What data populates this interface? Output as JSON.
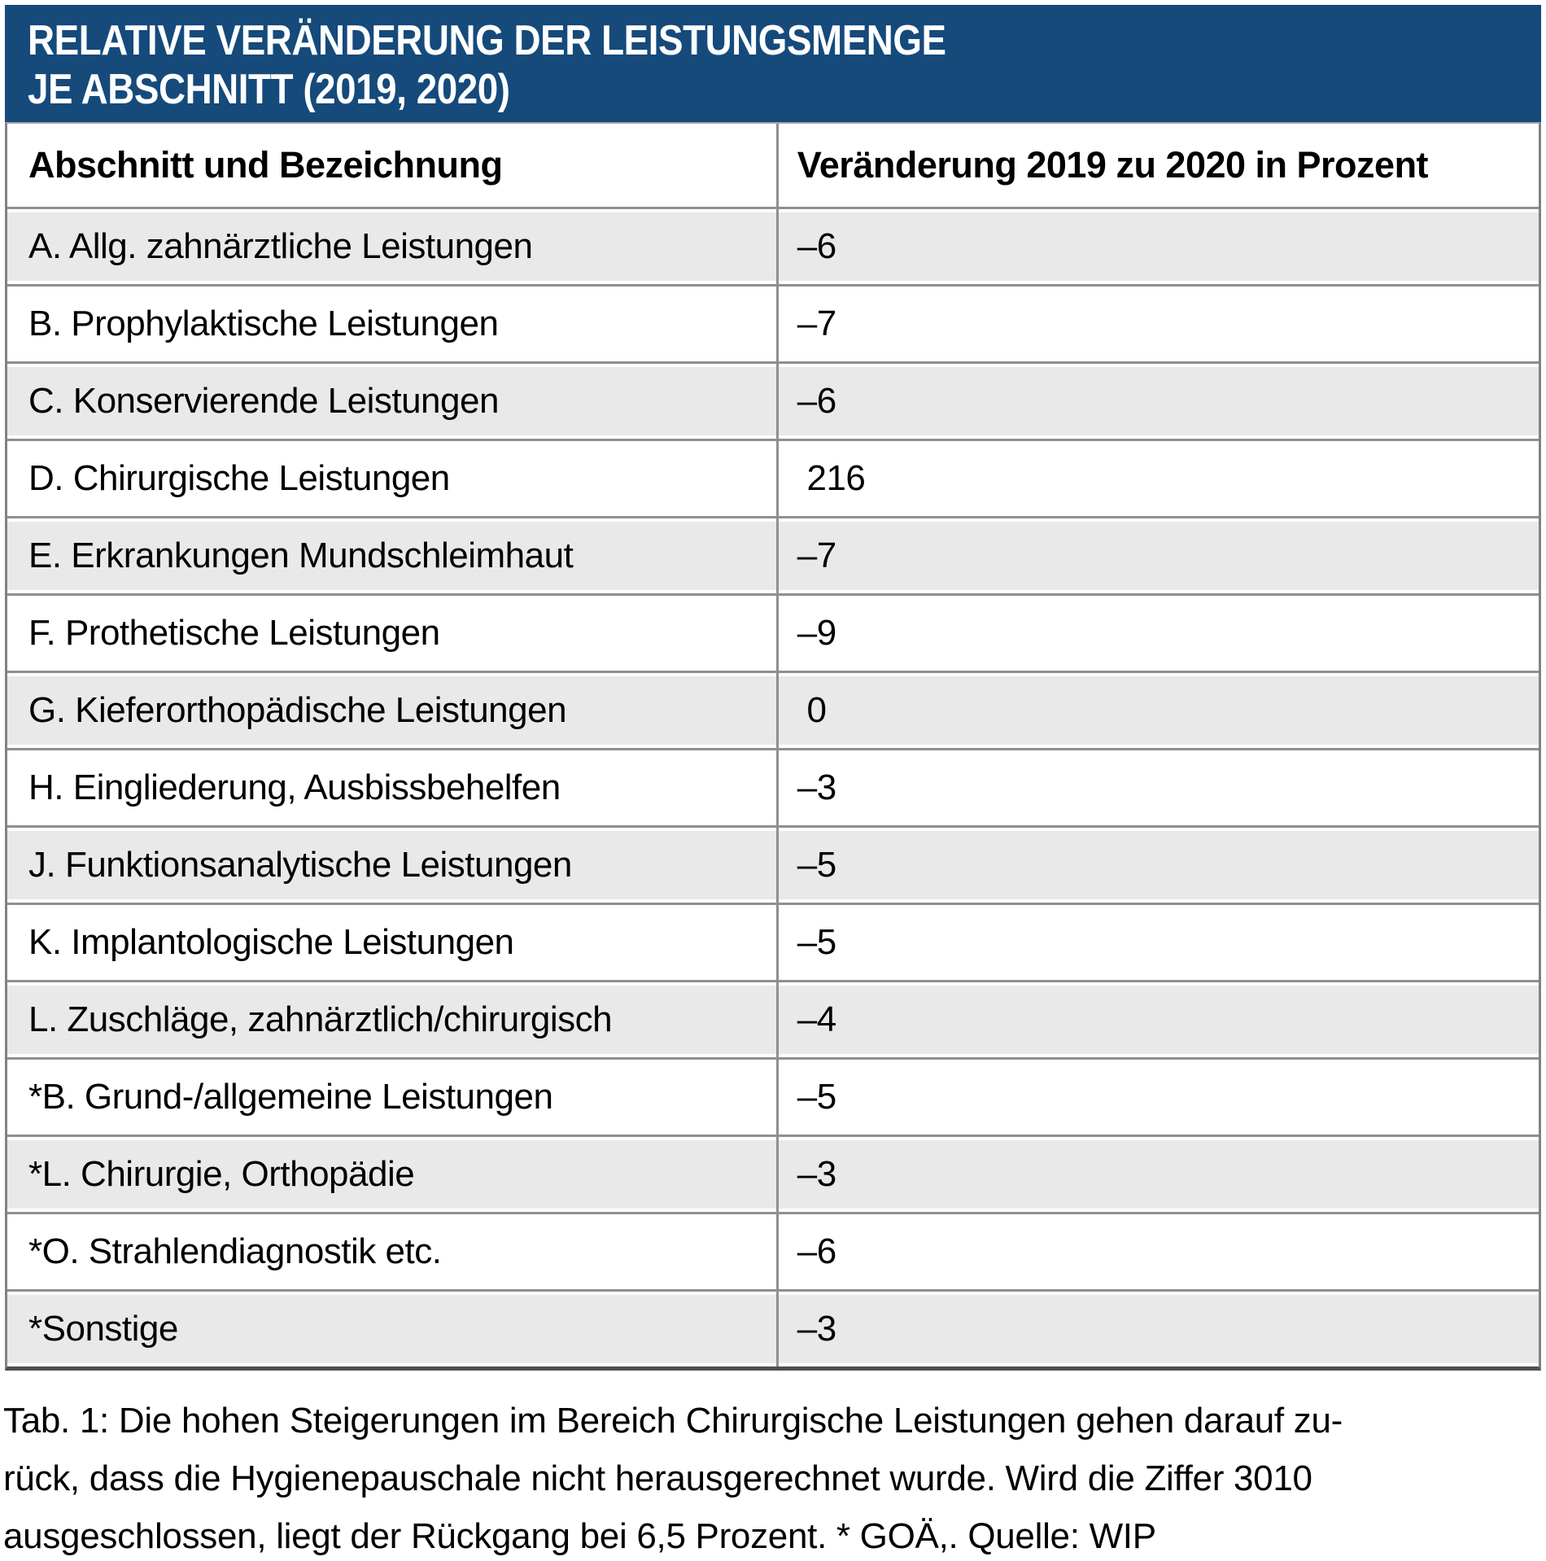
{
  "title": {
    "line1": "RELATIVE VERÄNDERUNG DER LEISTUNGSMENGE",
    "line2": "JE ABSCHNITT (2019, 2020)"
  },
  "table": {
    "columns": [
      "Abschnitt und Bezeichnung",
      "Veränderung 2019 zu 2020 in Prozent"
    ],
    "rows": [
      {
        "label": "A. Allg. zahnärztliche Leistungen",
        "value": "–6"
      },
      {
        "label": "B. Prophylaktische Leistungen",
        "value": "–7"
      },
      {
        "label": "C. Konservierende Leistungen",
        "value": "–6"
      },
      {
        "label": "D. Chirurgische Leistungen",
        "value": " 216"
      },
      {
        "label": "E. Erkrankungen Mundschleimhaut",
        "value": "–7"
      },
      {
        "label": "F. Prothetische Leistungen",
        "value": "–9"
      },
      {
        "label": "G. Kieferorthopädische Leistungen",
        "value": " 0"
      },
      {
        "label": "H. Eingliederung, Ausbissbehelfen",
        "value": "–3"
      },
      {
        "label": "J. Funktionsanalytische Leistungen",
        "value": "–5"
      },
      {
        "label": "K. Implantologische Leistungen",
        "value": "–5"
      },
      {
        "label": "L. Zuschläge, zahnärztlich/chirurgisch",
        "value": "–4"
      },
      {
        "label": "*B. Grund-/allgemeine Leistungen",
        "value": "–5"
      },
      {
        "label": "*L. Chirurgie, Orthopädie",
        "value": "–3"
      },
      {
        "label": "*O. Strahlendiagnostik etc.",
        "value": "–6"
      },
      {
        "label": "*Sonstige",
        "value": "–3"
      }
    ]
  },
  "caption": {
    "lines": [
      "Tab. 1: Die hohen Steigerungen im Bereich Chirurgische Leistungen gehen darauf zu-",
      "rück, dass die Hygienepauschale nicht herausgerechnet wurde. Wird die Ziffer 3010",
      "ausgeschlossen, liegt der Rückgang bei 6,5 Prozent. * GOÄ,. Quelle: WIP"
    ]
  },
  "colors": {
    "header_bg": "#154a7b",
    "header_text": "#ffffff",
    "row_alt_bg": "#e9e9e9",
    "grid_line": "#8f8f8f",
    "body_text": "#000000"
  },
  "chart_data": {
    "type": "table",
    "title": "RELATIVE VERÄNDERUNG DER LEISTUNGSMENGE JE ABSCHNITT (2019, 2020)",
    "columns": [
      "Abschnitt und Bezeichnung",
      "Veränderung 2019 zu 2020 in Prozent"
    ],
    "categories": [
      "A. Allg. zahnärztliche Leistungen",
      "B. Prophylaktische Leistungen",
      "C. Konservierende Leistungen",
      "D. Chirurgische Leistungen",
      "E. Erkrankungen Mundschleimhaut",
      "F. Prothetische Leistungen",
      "G. Kieferorthopädische Leistungen",
      "H. Eingliederung, Ausbissbehelfen",
      "J. Funktionsanalytische Leistungen",
      "K. Implantologische Leistungen",
      "L. Zuschläge, zahnärztlich/chirurgisch",
      "*B. Grund-/allgemeine Leistungen",
      "*L. Chirurgie, Orthopädie",
      "*O. Strahlendiagnostik etc.",
      "*Sonstige"
    ],
    "values": [
      -6,
      -7,
      -6,
      216,
      -7,
      -9,
      0,
      -3,
      -5,
      -5,
      -4,
      -5,
      -3,
      -6,
      -3
    ]
  }
}
